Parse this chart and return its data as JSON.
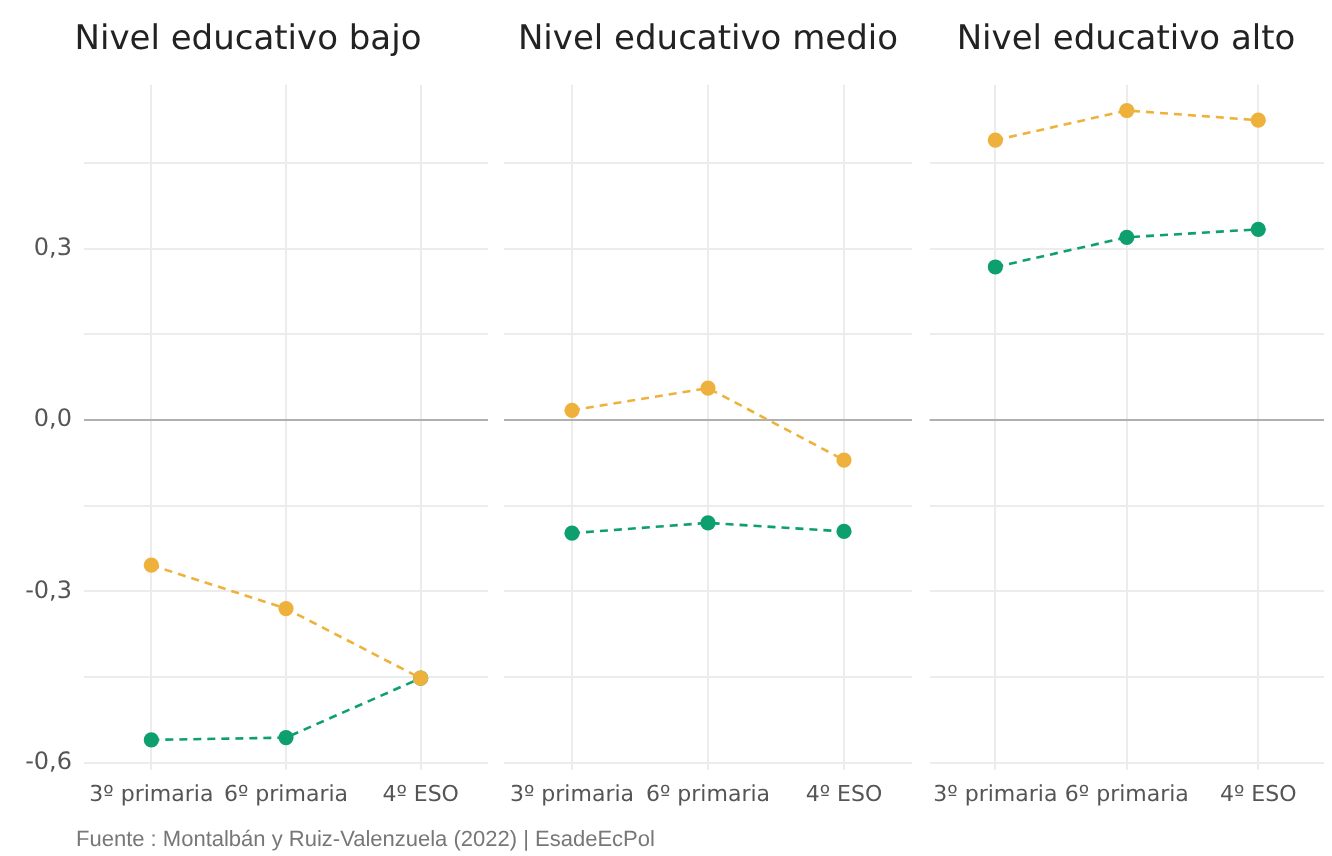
{
  "chart_data": [
    {
      "type": "line",
      "title": "Nivel educativo bajo",
      "categories": [
        "3º primaria",
        "6º primaria",
        "4º ESO"
      ],
      "series": [
        {
          "color": "#eeb13b",
          "values": [
            -0.254,
            -0.33,
            -0.452
          ]
        },
        {
          "color": "#0e9f6e",
          "values": [
            -0.56,
            -0.556,
            -0.452
          ]
        }
      ],
      "ylim": [
        -0.612,
        0.587
      ],
      "yticks": [
        {
          "value": -0.6,
          "label": "-0,6"
        },
        {
          "value": -0.45,
          "label": null
        },
        {
          "value": -0.3,
          "label": "-0,3"
        },
        {
          "value": -0.15,
          "label": null
        },
        {
          "value": 0,
          "label": "0,0"
        },
        {
          "value": 0.15,
          "label": null
        },
        {
          "value": 0.3,
          "label": "0,3"
        },
        {
          "value": 0.45,
          "label": null
        }
      ],
      "grid": true,
      "marker": "circle",
      "line_style": "dashed",
      "legend": false,
      "ref_lines": [
        {
          "axis": "y",
          "value": 0,
          "color": "#b0b0b0"
        }
      ],
      "annotations": [
        "Fuente : Montalbán y Ruiz-Valenzuela (2022) | EsadeEcPol"
      ]
    },
    {
      "type": "line",
      "title": "Nivel educativo medio",
      "categories": [
        "3º primaria",
        "6º primaria",
        "4º ESO"
      ],
      "series": [
        {
          "color": "#eeb13b",
          "values": [
            0.017,
            0.056,
            -0.07
          ]
        },
        {
          "color": "#0e9f6e",
          "values": [
            -0.198,
            -0.18,
            -0.195
          ]
        }
      ],
      "ylim": [
        -0.612,
        0.587
      ],
      "yticks": [
        {
          "value": -0.6,
          "label": null
        },
        {
          "value": -0.45,
          "label": null
        },
        {
          "value": -0.3,
          "label": null
        },
        {
          "value": -0.15,
          "label": null
        },
        {
          "value": 0,
          "label": null
        },
        {
          "value": 0.15,
          "label": null
        },
        {
          "value": 0.3,
          "label": null
        },
        {
          "value": 0.45,
          "label": null
        }
      ],
      "grid": true,
      "marker": "circle",
      "line_style": "dashed",
      "legend": false,
      "tick_labels": "x",
      "ref_lines": [
        {
          "axis": "y",
          "value": 0,
          "color": "#b0b0b0"
        }
      ]
    },
    {
      "type": "line",
      "title": "Nivel educativo alto",
      "categories": [
        "3º primaria",
        "6º primaria",
        "4º ESO"
      ],
      "series": [
        {
          "color": "#eeb13b",
          "values": [
            0.49,
            0.542,
            0.525
          ]
        },
        {
          "color": "#0e9f6e",
          "values": [
            0.268,
            0.32,
            0.334
          ]
        }
      ],
      "ylim": [
        -0.612,
        0.587
      ],
      "yticks": [
        {
          "value": -0.6,
          "label": null
        },
        {
          "value": -0.45,
          "label": null
        },
        {
          "value": -0.3,
          "label": null
        },
        {
          "value": -0.15,
          "label": null
        },
        {
          "value": 0,
          "label": null
        },
        {
          "value": 0.15,
          "label": null
        },
        {
          "value": 0.3,
          "label": null
        },
        {
          "value": 0.45,
          "label": null
        }
      ],
      "grid": true,
      "marker": "circle",
      "line_style": "dashed",
      "legend": false,
      "tick_labels": "x",
      "ref_lines": [
        {
          "axis": "y",
          "value": 0,
          "color": "#b0b0b0"
        }
      ]
    }
  ]
}
